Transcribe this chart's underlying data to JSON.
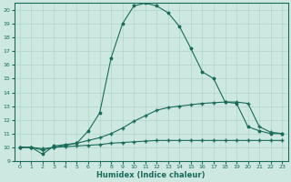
{
  "xlabel": "Humidex (Indice chaleur)",
  "bg_color": "#cde8e0",
  "line_color": "#1a6b5a",
  "grid_color": "#b0d4cc",
  "xlim": [
    -0.5,
    23.5
  ],
  "ylim": [
    9,
    20.5
  ],
  "xticks": [
    0,
    1,
    2,
    3,
    4,
    5,
    6,
    7,
    8,
    9,
    10,
    11,
    12,
    13,
    14,
    15,
    16,
    17,
    18,
    19,
    20,
    21,
    22,
    23
  ],
  "yticks": [
    9,
    10,
    11,
    12,
    13,
    14,
    15,
    16,
    17,
    18,
    19,
    20
  ],
  "curve1_x": [
    0,
    1,
    2,
    3,
    4,
    5,
    6,
    7,
    8,
    9,
    10,
    11,
    12,
    13,
    14,
    15,
    16,
    17,
    18,
    19,
    20,
    21,
    22,
    23
  ],
  "curve1_y": [
    10.0,
    10.0,
    9.5,
    10.1,
    10.2,
    10.3,
    11.2,
    12.5,
    16.5,
    19.0,
    20.3,
    20.5,
    20.3,
    19.8,
    18.8,
    17.2,
    15.5,
    15.0,
    13.3,
    13.2,
    11.5,
    11.2,
    11.0,
    11.0
  ],
  "curve2_x": [
    0,
    1,
    2,
    3,
    4,
    5,
    6,
    7,
    8,
    9,
    10,
    11,
    12,
    13,
    14,
    15,
    16,
    17,
    18,
    19,
    20,
    21,
    22,
    23
  ],
  "curve2_y": [
    10.0,
    10.0,
    9.8,
    10.0,
    10.15,
    10.3,
    10.5,
    10.7,
    11.0,
    11.4,
    11.9,
    12.3,
    12.7,
    12.9,
    13.0,
    13.1,
    13.2,
    13.25,
    13.3,
    13.3,
    13.2,
    11.5,
    11.1,
    11.0
  ],
  "curve3_x": [
    0,
    1,
    2,
    3,
    4,
    5,
    6,
    7,
    8,
    9,
    10,
    11,
    12,
    13,
    14,
    15,
    16,
    17,
    18,
    19,
    20,
    21,
    22,
    23
  ],
  "curve3_y": [
    10.0,
    10.0,
    9.9,
    10.0,
    10.05,
    10.1,
    10.15,
    10.2,
    10.3,
    10.35,
    10.4,
    10.45,
    10.5,
    10.5,
    10.5,
    10.5,
    10.5,
    10.5,
    10.5,
    10.5,
    10.5,
    10.5,
    10.5,
    10.5
  ]
}
